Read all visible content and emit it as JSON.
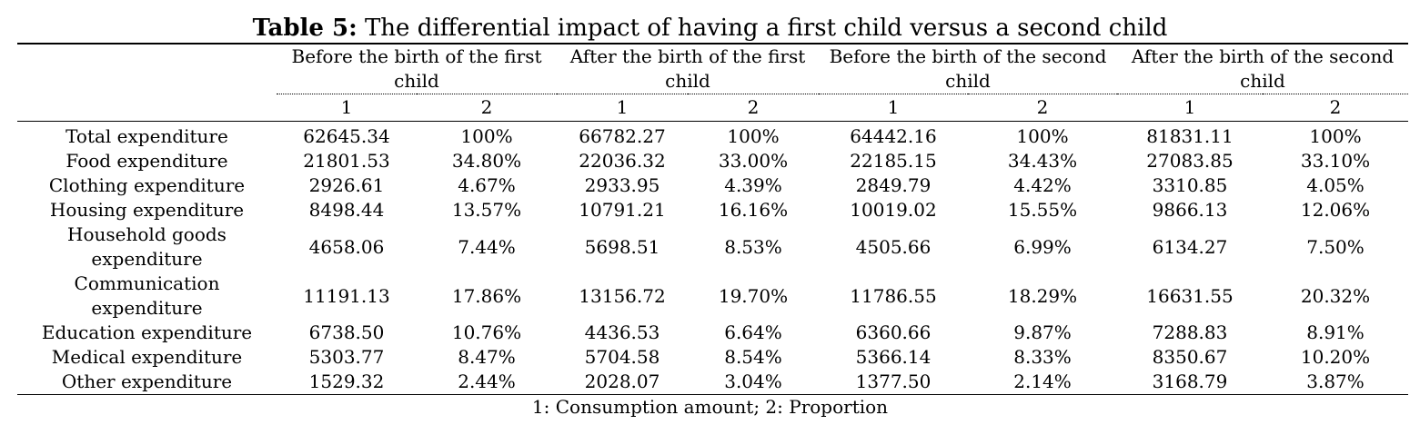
{
  "title": {
    "label": "Table 5:",
    "text": "The differential impact of having a first child versus a second child"
  },
  "column_groups": [
    "Before the birth of the first child",
    "After the birth of the first child",
    "Before the birth of the second child",
    "After the birth of the second child"
  ],
  "sub_headers": [
    "1",
    "2"
  ],
  "rows": [
    {
      "label": "Total expenditure",
      "values": [
        "62645.34",
        "100%",
        "66782.27",
        "100%",
        "64442.16",
        "100%",
        "81831.11",
        "100%"
      ]
    },
    {
      "label": "Food expenditure",
      "values": [
        "21801.53",
        "34.80%",
        "22036.32",
        "33.00%",
        "22185.15",
        "34.43%",
        "27083.85",
        "33.10%"
      ]
    },
    {
      "label": "Clothing expenditure",
      "values": [
        "2926.61",
        "4.67%",
        "2933.95",
        "4.39%",
        "2849.79",
        "4.42%",
        "3310.85",
        "4.05%"
      ]
    },
    {
      "label": "Housing expenditure",
      "values": [
        "8498.44",
        "13.57%",
        "10791.21",
        "16.16%",
        "10019.02",
        "15.55%",
        "9866.13",
        "12.06%"
      ]
    },
    {
      "label": "Household goods expenditure",
      "values": [
        "4658.06",
        "7.44%",
        "5698.51",
        "8.53%",
        "4505.66",
        "6.99%",
        "6134.27",
        "7.50%"
      ]
    },
    {
      "label": "Communication expenditure",
      "values": [
        "11191.13",
        "17.86%",
        "13156.72",
        "19.70%",
        "11786.55",
        "18.29%",
        "16631.55",
        "20.32%"
      ]
    },
    {
      "label": "Education expenditure",
      "values": [
        "6738.50",
        "10.76%",
        "4436.53",
        "6.64%",
        "6360.66",
        "9.87%",
        "7288.83",
        "8.91%"
      ]
    },
    {
      "label": "Medical expenditure",
      "values": [
        "5303.77",
        "8.47%",
        "5704.58",
        "8.54%",
        "5366.14",
        "8.33%",
        "8350.67",
        "10.20%"
      ]
    },
    {
      "label": "Other expenditure",
      "values": [
        "1529.32",
        "2.44%",
        "2028.07",
        "3.04%",
        "1377.50",
        "2.14%",
        "3168.79",
        "3.87%"
      ]
    }
  ],
  "note": "1: Consumption amount; 2: Proportion"
}
